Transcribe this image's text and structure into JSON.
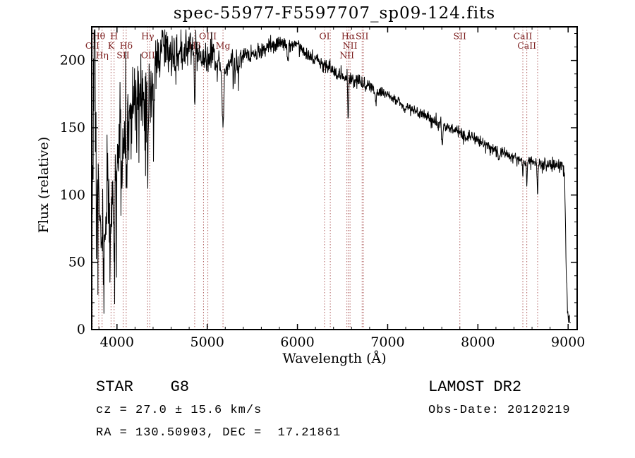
{
  "chart_data": {
    "type": "line",
    "title": "spec-55977-F5597707_sp09-124.fits",
    "xlabel": "Wavelength (Å)",
    "ylabel": "Flux (relative)",
    "xlim": [
      3720,
      9100
    ],
    "ylim": [
      0,
      225
    ],
    "xticks": [
      4000,
      5000,
      6000,
      7000,
      8000,
      9000
    ],
    "yticks": [
      0,
      50,
      100,
      150,
      200
    ],
    "x_minor_step": 200,
    "y_minor_step": 10,
    "grid": false,
    "legend": "none",
    "series_color": "#000000",
    "marker_color": "#b06060",
    "label_color": "#7b1d1d",
    "spectrum_anchors": [
      [
        3720,
        90
      ],
      [
        3740,
        170
      ],
      [
        3755,
        200
      ],
      [
        3775,
        80
      ],
      [
        3795,
        130
      ],
      [
        3815,
        70
      ],
      [
        3835,
        55
      ],
      [
        3855,
        45
      ],
      [
        3875,
        95
      ],
      [
        3895,
        115
      ],
      [
        3915,
        85
      ],
      [
        3935,
        75
      ],
      [
        3960,
        95
      ],
      [
        3985,
        105
      ],
      [
        4010,
        135
      ],
      [
        4040,
        150
      ],
      [
        4070,
        145
      ],
      [
        4100,
        160
      ],
      [
        4140,
        165
      ],
      [
        4180,
        170
      ],
      [
        4220,
        165
      ],
      [
        4260,
        172
      ],
      [
        4300,
        170
      ],
      [
        4340,
        172
      ],
      [
        4380,
        185
      ],
      [
        4420,
        195
      ],
      [
        4460,
        205
      ],
      [
        4500,
        212
      ],
      [
        4540,
        215
      ],
      [
        4580,
        210
      ],
      [
        4620,
        205
      ],
      [
        4660,
        200
      ],
      [
        4700,
        207
      ],
      [
        4740,
        205
      ],
      [
        4780,
        212
      ],
      [
        4820,
        210
      ],
      [
        4861,
        208
      ],
      [
        4900,
        205
      ],
      [
        4940,
        200
      ],
      [
        4980,
        198
      ],
      [
        5020,
        202
      ],
      [
        5060,
        205
      ],
      [
        5100,
        202
      ],
      [
        5140,
        198
      ],
      [
        5180,
        196
      ],
      [
        5220,
        196
      ],
      [
        5260,
        199
      ],
      [
        5300,
        200
      ],
      [
        5350,
        202
      ],
      [
        5400,
        203
      ],
      [
        5450,
        202
      ],
      [
        5500,
        203
      ],
      [
        5550,
        205
      ],
      [
        5600,
        207
      ],
      [
        5650,
        208
      ],
      [
        5700,
        210
      ],
      [
        5750,
        212
      ],
      [
        5800,
        214
      ],
      [
        5850,
        212
      ],
      [
        5900,
        210
      ],
      [
        5950,
        212
      ],
      [
        6000,
        213
      ],
      [
        6050,
        209
      ],
      [
        6100,
        206
      ],
      [
        6150,
        203
      ],
      [
        6200,
        200
      ],
      [
        6250,
        198
      ],
      [
        6300,
        196
      ],
      [
        6350,
        194
      ],
      [
        6400,
        192
      ],
      [
        6450,
        190
      ],
      [
        6500,
        189
      ],
      [
        6550,
        187
      ],
      [
        6600,
        186
      ],
      [
        6650,
        185
      ],
      [
        6700,
        184
      ],
      [
        6750,
        182
      ],
      [
        6800,
        181
      ],
      [
        6850,
        179
      ],
      [
        6900,
        177
      ],
      [
        6950,
        176
      ],
      [
        7000,
        175
      ],
      [
        7050,
        172
      ],
      [
        7100,
        170
      ],
      [
        7150,
        168
      ],
      [
        7200,
        167
      ],
      [
        7250,
        165
      ],
      [
        7300,
        163
      ],
      [
        7350,
        161
      ],
      [
        7400,
        160
      ],
      [
        7450,
        158
      ],
      [
        7500,
        156
      ],
      [
        7550,
        153
      ],
      [
        7600,
        151
      ],
      [
        7650,
        150
      ],
      [
        7700,
        149
      ],
      [
        7750,
        148
      ],
      [
        7800,
        146
      ],
      [
        7850,
        144
      ],
      [
        7900,
        143
      ],
      [
        7950,
        142
      ],
      [
        8000,
        141
      ],
      [
        8050,
        139
      ],
      [
        8100,
        137
      ],
      [
        8150,
        135
      ],
      [
        8200,
        134
      ],
      [
        8250,
        132
      ],
      [
        8300,
        131
      ],
      [
        8350,
        129
      ],
      [
        8400,
        128
      ],
      [
        8450,
        127
      ],
      [
        8500,
        126
      ],
      [
        8550,
        125
      ],
      [
        8600,
        126
      ],
      [
        8650,
        124
      ],
      [
        8700,
        123
      ],
      [
        8750,
        123
      ],
      [
        8800,
        122
      ],
      [
        8850,
        123
      ],
      [
        8900,
        122
      ],
      [
        8940,
        124
      ],
      [
        8960,
        118
      ],
      [
        8980,
        40
      ],
      [
        9000,
        10
      ],
      [
        9030,
        5
      ]
    ],
    "noise": {
      "seed": 7,
      "sigma_anchors": [
        [
          3720,
          28
        ],
        [
          3950,
          26
        ],
        [
          4100,
          24
        ],
        [
          4300,
          18
        ],
        [
          4450,
          12
        ],
        [
          4600,
          9
        ],
        [
          4800,
          7
        ],
        [
          5000,
          5
        ],
        [
          5300,
          4
        ],
        [
          5600,
          3
        ],
        [
          6000,
          2.8
        ],
        [
          6500,
          2.5
        ],
        [
          7000,
          2.2
        ],
        [
          8000,
          2.2
        ],
        [
          8900,
          2.5
        ],
        [
          9100,
          3
        ]
      ],
      "blue_spike_limit": 4480,
      "blue_spike_prob": 0.06,
      "blue_spike_max": 65,
      "mid_spike_limit": 5350,
      "mid_spike_prob": 0.045,
      "mid_spike_max": 26
    },
    "absorption_dips": [
      {
        "wavelength": 3934,
        "depth": 40,
        "width": 9
      },
      {
        "wavelength": 3968,
        "depth": 35,
        "width": 9
      },
      {
        "wavelength": 4102,
        "depth": 35,
        "width": 8
      },
      {
        "wavelength": 4305,
        "depth": 25,
        "width": 10
      },
      {
        "wavelength": 4340,
        "depth": 35,
        "width": 7
      },
      {
        "wavelength": 4861,
        "depth": 38,
        "width": 7
      },
      {
        "wavelength": 5175,
        "depth": 45,
        "width": 14
      },
      {
        "wavelength": 5893,
        "depth": 12,
        "width": 8
      },
      {
        "wavelength": 6563,
        "depth": 30,
        "width": 7
      },
      {
        "wavelength": 6870,
        "depth": 10,
        "width": 9
      },
      {
        "wavelength": 7186,
        "depth": 6,
        "width": 12
      },
      {
        "wavelength": 7605,
        "depth": 13,
        "width": 9
      },
      {
        "wavelength": 8230,
        "depth": 6,
        "width": 10
      },
      {
        "wavelength": 8498,
        "depth": 14,
        "width": 6
      },
      {
        "wavelength": 8542,
        "depth": 16,
        "width": 6
      },
      {
        "wavelength": 8662,
        "depth": 24,
        "width": 6
      }
    ],
    "spectral_lines": [
      {
        "wavelength": 3727,
        "label": "OII",
        "row": 2
      },
      {
        "wavelength": 3798,
        "label": "Hθ",
        "row": 1
      },
      {
        "wavelength": 3835,
        "label": "Hη",
        "row": 3
      },
      {
        "wavelength": 3934,
        "label": "K",
        "row": 2
      },
      {
        "wavelength": 3968,
        "label": "H",
        "row": 1
      },
      {
        "wavelength": 4068,
        "label": "SII",
        "row": 3
      },
      {
        "wavelength": 4102,
        "label": "Hδ",
        "row": 2
      },
      {
        "wavelength": 4340,
        "label": "Hγ",
        "row": 1
      },
      {
        "wavelength": 4363,
        "label": "OIII",
        "row": 3
      },
      {
        "wavelength": 4861,
        "label": "Hβ",
        "row": 2
      },
      {
        "wavelength": 4959,
        "label": "",
        "row": 0
      },
      {
        "wavelength": 5007,
        "label": "OIII",
        "row": 1
      },
      {
        "wavelength": 5175,
        "label": "Mg",
        "row": 2
      },
      {
        "wavelength": 6300,
        "label": "OI",
        "row": 1
      },
      {
        "wavelength": 6364,
        "label": "",
        "row": 0
      },
      {
        "wavelength": 6548,
        "label": "NII",
        "row": 3
      },
      {
        "wavelength": 6563,
        "label": "Hα",
        "row": 1
      },
      {
        "wavelength": 6583,
        "label": "NII",
        "row": 2
      },
      {
        "wavelength": 6717,
        "label": "SII",
        "row": 1
      },
      {
        "wavelength": 6731,
        "label": "",
        "row": 0
      },
      {
        "wavelength": 7800,
        "label": "SII",
        "row": 1
      },
      {
        "wavelength": 8498,
        "label": "CaII",
        "row": 1
      },
      {
        "wavelength": 8542,
        "label": "CaII",
        "row": 2
      },
      {
        "wavelength": 8662,
        "label": "",
        "row": 0
      }
    ]
  },
  "annotations": {
    "object_type": "STAR    G8",
    "survey": "LAMOST DR2",
    "cz": "cz = 27.0 ± 15.6 km/s",
    "obs_date": "Obs-Date: 20120219",
    "coords": "RA = 130.50903, DEC =  17.21861"
  }
}
